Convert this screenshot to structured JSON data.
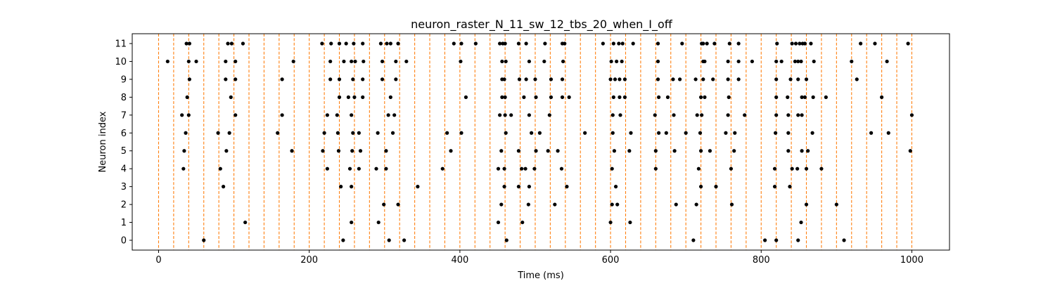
{
  "chart_data": {
    "type": "scatter",
    "title": "neuron_raster_N_11_sw_12_tbs_20_when_I_off",
    "xlabel": "Time (ms)",
    "ylabel": "Neuron index",
    "xlim": [
      -35,
      1050
    ],
    "ylim": [
      -0.55,
      11.55
    ],
    "xticks": [
      0,
      200,
      400,
      600,
      800,
      1000
    ],
    "yticks": [
      0,
      1,
      2,
      3,
      4,
      5,
      6,
      7,
      8,
      9,
      10,
      11
    ],
    "grid": false,
    "legend": "none",
    "colors": {
      "spike": "#000000",
      "boundary": "#ff7f0e"
    },
    "boundaries": [
      0,
      20,
      40,
      60,
      80,
      100,
      120,
      140,
      160,
      180,
      200,
      220,
      240,
      260,
      280,
      300,
      320,
      340,
      360,
      380,
      400,
      420,
      440,
      460,
      480,
      500,
      520,
      540,
      560,
      580,
      600,
      620,
      640,
      660,
      680,
      700,
      720,
      740,
      760,
      780,
      800,
      820,
      840,
      860,
      880,
      900,
      920,
      940,
      960,
      980,
      1000
    ],
    "series": [
      {
        "values": [
          [
            37,
            11
          ],
          [
            41,
            11
          ],
          [
            92,
            11
          ],
          [
            97,
            11
          ],
          [
            112,
            11
          ],
          [
            217,
            11
          ],
          [
            229,
            11
          ],
          [
            240,
            11
          ],
          [
            249,
            11
          ],
          [
            259,
            11
          ],
          [
            271,
            11
          ],
          [
            295,
            11
          ],
          [
            303,
            11
          ],
          [
            308,
            11
          ],
          [
            318,
            11
          ],
          [
            392,
            11
          ],
          [
            402,
            11
          ],
          [
            421,
            11
          ],
          [
            453,
            11
          ],
          [
            457,
            11
          ],
          [
            460,
            11
          ],
          [
            478,
            11
          ],
          [
            488,
            11
          ],
          [
            513,
            11
          ],
          [
            536,
            11
          ],
          [
            539,
            11
          ],
          [
            590,
            11
          ],
          [
            604,
            11
          ],
          [
            611,
            11
          ],
          [
            616,
            11
          ],
          [
            630,
            11
          ],
          [
            663,
            11
          ],
          [
            695,
            11
          ],
          [
            721,
            11
          ],
          [
            723,
            11
          ],
          [
            728,
            11
          ],
          [
            738,
            11
          ],
          [
            758,
            11
          ],
          [
            770,
            11
          ],
          [
            821,
            11
          ],
          [
            841,
            11
          ],
          [
            846,
            11
          ],
          [
            851,
            11
          ],
          [
            855,
            11
          ],
          [
            858,
            11
          ],
          [
            866,
            11
          ],
          [
            932,
            11
          ],
          [
            951,
            11
          ],
          [
            995,
            11
          ],
          [
            12,
            10
          ],
          [
            40,
            10
          ],
          [
            50,
            10
          ],
          [
            89,
            10
          ],
          [
            102,
            10
          ],
          [
            179,
            10
          ],
          [
            228,
            10
          ],
          [
            246,
            10
          ],
          [
            256,
            10
          ],
          [
            261,
            10
          ],
          [
            272,
            10
          ],
          [
            297,
            10
          ],
          [
            315,
            10
          ],
          [
            329,
            10
          ],
          [
            401,
            10
          ],
          [
            456,
            10
          ],
          [
            461,
            10
          ],
          [
            492,
            10
          ],
          [
            512,
            10
          ],
          [
            537,
            10
          ],
          [
            601,
            10
          ],
          [
            608,
            10
          ],
          [
            615,
            10
          ],
          [
            663,
            10
          ],
          [
            723,
            10
          ],
          [
            725,
            10
          ],
          [
            756,
            10
          ],
          [
            770,
            10
          ],
          [
            788,
            10
          ],
          [
            820,
            10
          ],
          [
            827,
            10
          ],
          [
            845,
            10
          ],
          [
            849,
            10
          ],
          [
            853,
            10
          ],
          [
            870,
            10
          ],
          [
            920,
            10
          ],
          [
            967,
            10
          ],
          [
            41,
            9
          ],
          [
            89,
            9
          ],
          [
            102,
            9
          ],
          [
            164,
            9
          ],
          [
            228,
            9
          ],
          [
            240,
            9
          ],
          [
            258,
            9
          ],
          [
            271,
            9
          ],
          [
            297,
            9
          ],
          [
            315,
            9
          ],
          [
            456,
            9
          ],
          [
            459,
            9
          ],
          [
            479,
            9
          ],
          [
            488,
            9
          ],
          [
            500,
            9
          ],
          [
            521,
            9
          ],
          [
            536,
            9
          ],
          [
            600,
            9
          ],
          [
            606,
            9
          ],
          [
            612,
            9
          ],
          [
            619,
            9
          ],
          [
            663,
            9
          ],
          [
            683,
            9
          ],
          [
            692,
            9
          ],
          [
            713,
            9
          ],
          [
            723,
            9
          ],
          [
            736,
            9
          ],
          [
            756,
            9
          ],
          [
            770,
            9
          ],
          [
            820,
            9
          ],
          [
            839,
            9
          ],
          [
            849,
            9
          ],
          [
            860,
            9
          ],
          [
            927,
            9
          ],
          [
            38,
            8
          ],
          [
            96,
            8
          ],
          [
            240,
            8
          ],
          [
            252,
            8
          ],
          [
            260,
            8
          ],
          [
            271,
            8
          ],
          [
            308,
            8
          ],
          [
            408,
            8
          ],
          [
            456,
            8
          ],
          [
            460,
            8
          ],
          [
            485,
            8
          ],
          [
            501,
            8
          ],
          [
            521,
            8
          ],
          [
            536,
            8
          ],
          [
            545,
            8
          ],
          [
            604,
            8
          ],
          [
            612,
            8
          ],
          [
            619,
            8
          ],
          [
            664,
            8
          ],
          [
            676,
            8
          ],
          [
            720,
            8
          ],
          [
            725,
            8
          ],
          [
            757,
            8
          ],
          [
            820,
            8
          ],
          [
            835,
            8
          ],
          [
            854,
            8
          ],
          [
            858,
            8
          ],
          [
            869,
            8
          ],
          [
            886,
            8
          ],
          [
            960,
            8
          ],
          [
            31,
            7
          ],
          [
            40,
            7
          ],
          [
            102,
            7
          ],
          [
            164,
            7
          ],
          [
            224,
            7
          ],
          [
            237,
            7
          ],
          [
            256,
            7
          ],
          [
            305,
            7
          ],
          [
            313,
            7
          ],
          [
            453,
            7
          ],
          [
            460,
            7
          ],
          [
            468,
            7
          ],
          [
            492,
            7
          ],
          [
            519,
            7
          ],
          [
            603,
            7
          ],
          [
            613,
            7
          ],
          [
            659,
            7
          ],
          [
            684,
            7
          ],
          [
            715,
            7
          ],
          [
            721,
            7
          ],
          [
            756,
            7
          ],
          [
            778,
            7
          ],
          [
            820,
            7
          ],
          [
            836,
            7
          ],
          [
            849,
            7
          ],
          [
            854,
            7
          ],
          [
            1000,
            7
          ],
          [
            36,
            6
          ],
          [
            79,
            6
          ],
          [
            94,
            6
          ],
          [
            158,
            6
          ],
          [
            220,
            6
          ],
          [
            238,
            6
          ],
          [
            258,
            6
          ],
          [
            266,
            6
          ],
          [
            291,
            6
          ],
          [
            311,
            6
          ],
          [
            383,
            6
          ],
          [
            402,
            6
          ],
          [
            461,
            6
          ],
          [
            495,
            6
          ],
          [
            506,
            6
          ],
          [
            566,
            6
          ],
          [
            603,
            6
          ],
          [
            627,
            6
          ],
          [
            664,
            6
          ],
          [
            674,
            6
          ],
          [
            700,
            6
          ],
          [
            719,
            6
          ],
          [
            753,
            6
          ],
          [
            765,
            6
          ],
          [
            819,
            6
          ],
          [
            836,
            6
          ],
          [
            868,
            6
          ],
          [
            946,
            6
          ],
          [
            969,
            6
          ],
          [
            34,
            5
          ],
          [
            90,
            5
          ],
          [
            177,
            5
          ],
          [
            218,
            5
          ],
          [
            239,
            5
          ],
          [
            257,
            5
          ],
          [
            268,
            5
          ],
          [
            302,
            5
          ],
          [
            388,
            5
          ],
          [
            455,
            5
          ],
          [
            478,
            5
          ],
          [
            501,
            5
          ],
          [
            517,
            5
          ],
          [
            530,
            5
          ],
          [
            605,
            5
          ],
          [
            625,
            5
          ],
          [
            660,
            5
          ],
          [
            685,
            5
          ],
          [
            720,
            5
          ],
          [
            732,
            5
          ],
          [
            764,
            5
          ],
          [
            836,
            5
          ],
          [
            854,
            5
          ],
          [
            862,
            5
          ],
          [
            998,
            5
          ],
          [
            33,
            4
          ],
          [
            82,
            4
          ],
          [
            224,
            4
          ],
          [
            254,
            4
          ],
          [
            266,
            4
          ],
          [
            289,
            4
          ],
          [
            302,
            4
          ],
          [
            377,
            4
          ],
          [
            451,
            4
          ],
          [
            459,
            4
          ],
          [
            482,
            4
          ],
          [
            487,
            4
          ],
          [
            499,
            4
          ],
          [
            535,
            4
          ],
          [
            602,
            4
          ],
          [
            660,
            4
          ],
          [
            717,
            4
          ],
          [
            760,
            4
          ],
          [
            818,
            4
          ],
          [
            841,
            4
          ],
          [
            848,
            4
          ],
          [
            860,
            4
          ],
          [
            880,
            4
          ],
          [
            86,
            3
          ],
          [
            242,
            3
          ],
          [
            256,
            3
          ],
          [
            344,
            3
          ],
          [
            459,
            3
          ],
          [
            478,
            3
          ],
          [
            492,
            3
          ],
          [
            542,
            3
          ],
          [
            607,
            3
          ],
          [
            720,
            3
          ],
          [
            740,
            3
          ],
          [
            818,
            3
          ],
          [
            838,
            3
          ],
          [
            299,
            2
          ],
          [
            318,
            2
          ],
          [
            455,
            2
          ],
          [
            491,
            2
          ],
          [
            526,
            2
          ],
          [
            602,
            2
          ],
          [
            609,
            2
          ],
          [
            687,
            2
          ],
          [
            714,
            2
          ],
          [
            761,
            2
          ],
          [
            860,
            2
          ],
          [
            900,
            2
          ],
          [
            115,
            1
          ],
          [
            256,
            1
          ],
          [
            292,
            1
          ],
          [
            451,
            1
          ],
          [
            483,
            1
          ],
          [
            600,
            1
          ],
          [
            626,
            1
          ],
          [
            853,
            1
          ],
          [
            60,
            0
          ],
          [
            245,
            0
          ],
          [
            306,
            0
          ],
          [
            326,
            0
          ],
          [
            462,
            0
          ],
          [
            710,
            0
          ],
          [
            805,
            0
          ],
          [
            820,
            0
          ],
          [
            849,
            0
          ],
          [
            910,
            0
          ]
        ]
      }
    ]
  }
}
